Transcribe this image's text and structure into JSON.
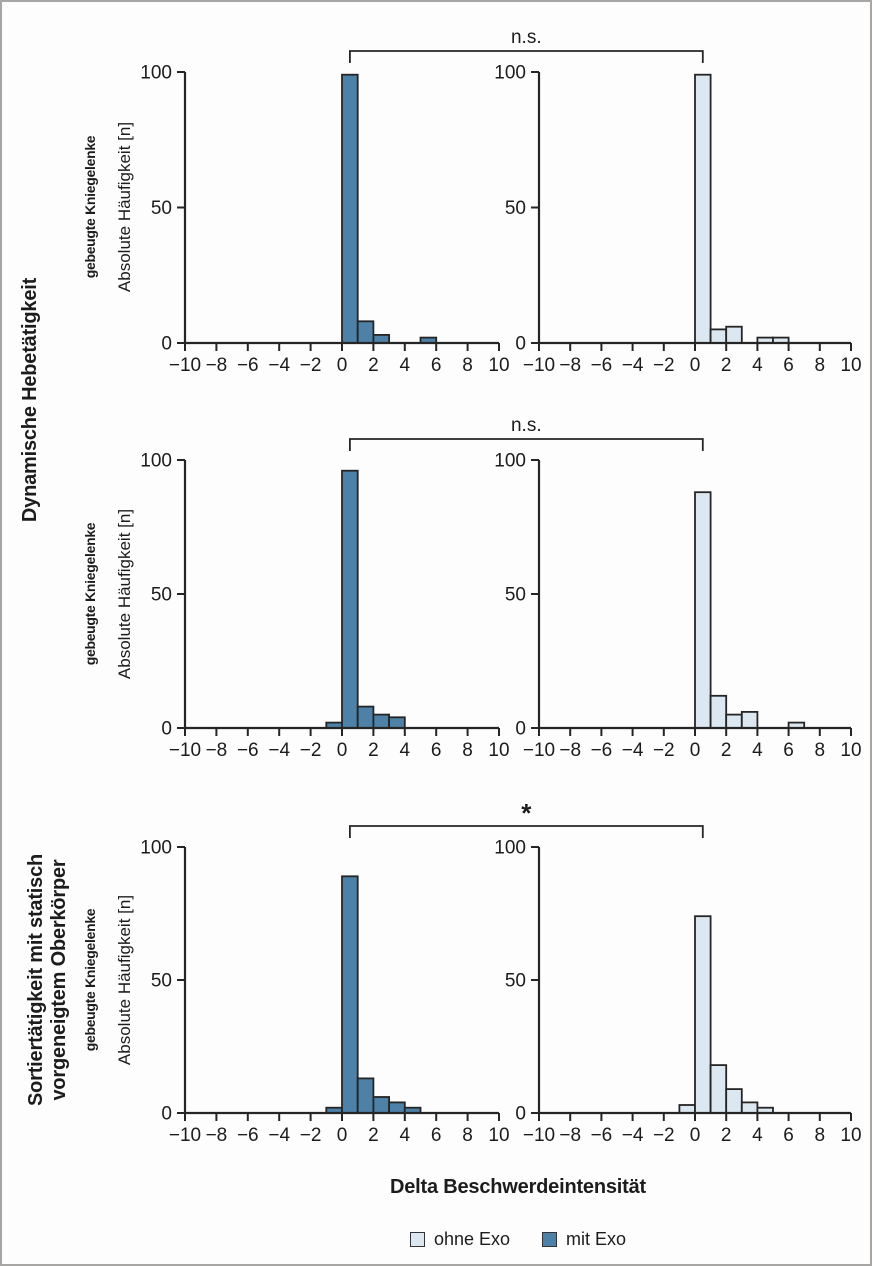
{
  "figure_title": "Delta Beschwerdeintensität",
  "row_labels": {
    "dynamic": "Dynamische Hebetätigkeit",
    "static_line1": "Sortiertätigkeit mit statisch",
    "static_line2": "vorgeneigtem Oberkörper"
  },
  "axis_labels": {
    "outer": "gebeugte Kniegelenke",
    "inner": "Absolute Häufigkeit [n]"
  },
  "legend": {
    "items": [
      {
        "label": "ohne Exo",
        "color": "#dce8f1"
      },
      {
        "label": "mit Exo",
        "color": "#4d81a8"
      }
    ]
  },
  "colors": {
    "mit_exo_fill": "#4d81a8",
    "ohne_exo_fill": "#dce8f1",
    "bar_stroke": "#252525",
    "axis_stroke": "#252525",
    "text": "#1c1c1c",
    "page_border": "#a8a6a4"
  },
  "chart_data": [
    {
      "type": "bar",
      "row_label": "Dynamische Hebetätigkeit",
      "significance": "n.s.",
      "xlabel": "Delta Beschwerdeintensität",
      "ylabel": "Absolute Häufigkeit [n]",
      "ylabel_secondary": "gebeugte Kniegelenke",
      "xlim": [
        -10,
        10
      ],
      "ylim": [
        0,
        100
      ],
      "bin_width": 1,
      "xticks": [
        -10,
        -8,
        -6,
        -4,
        -2,
        0,
        2,
        4,
        6,
        8,
        10
      ],
      "yticks": [
        0,
        50,
        100
      ],
      "series": [
        {
          "name": "mit Exo",
          "panel": "left",
          "bins": [
            [
              0,
              99
            ],
            [
              1,
              8
            ],
            [
              2,
              3
            ],
            [
              5,
              2
            ]
          ]
        },
        {
          "name": "ohne Exo",
          "panel": "right",
          "bins": [
            [
              0,
              99
            ],
            [
              1,
              5
            ],
            [
              2,
              6
            ],
            [
              4,
              2
            ],
            [
              5,
              2
            ]
          ]
        }
      ]
    },
    {
      "type": "bar",
      "row_label": "Dynamische Hebetätigkeit",
      "significance": "n.s.",
      "xlabel": "Delta Beschwerdeintensität",
      "ylabel": "Absolute Häufigkeit [n]",
      "ylabel_secondary": "gebeugte Kniegelenke",
      "xlim": [
        -10,
        10
      ],
      "ylim": [
        0,
        100
      ],
      "bin_width": 1,
      "xticks": [
        -10,
        -8,
        -6,
        -4,
        -2,
        0,
        2,
        4,
        6,
        8,
        10
      ],
      "yticks": [
        0,
        50,
        100
      ],
      "series": [
        {
          "name": "mit Exo",
          "panel": "left",
          "bins": [
            [
              -1,
              2
            ],
            [
              0,
              96
            ],
            [
              1,
              8
            ],
            [
              2,
              5
            ],
            [
              3,
              4
            ]
          ]
        },
        {
          "name": "ohne Exo",
          "panel": "right",
          "bins": [
            [
              0,
              88
            ],
            [
              1,
              12
            ],
            [
              2,
              5
            ],
            [
              3,
              6
            ],
            [
              6,
              2
            ]
          ]
        }
      ]
    },
    {
      "type": "bar",
      "row_label": "Sortiertätigkeit mit statisch vorgeneigtem Oberkörper",
      "significance": "*",
      "xlabel": "Delta Beschwerdeintensität",
      "ylabel": "Absolute Häufigkeit [n]",
      "ylabel_secondary": "gebeugte Kniegelenke",
      "xlim": [
        -10,
        10
      ],
      "ylim": [
        0,
        100
      ],
      "bin_width": 1,
      "xticks": [
        -10,
        -8,
        -6,
        -4,
        -2,
        0,
        2,
        4,
        6,
        8,
        10
      ],
      "yticks": [
        0,
        50,
        100
      ],
      "series": [
        {
          "name": "mit Exo",
          "panel": "left",
          "bins": [
            [
              -1,
              2
            ],
            [
              0,
              89
            ],
            [
              1,
              13
            ],
            [
              2,
              6
            ],
            [
              3,
              4
            ],
            [
              4,
              2
            ]
          ]
        },
        {
          "name": "ohne Exo",
          "panel": "right",
          "bins": [
            [
              -1,
              3
            ],
            [
              0,
              74
            ],
            [
              1,
              18
            ],
            [
              2,
              9
            ],
            [
              3,
              4
            ],
            [
              4,
              2
            ]
          ]
        }
      ]
    }
  ]
}
